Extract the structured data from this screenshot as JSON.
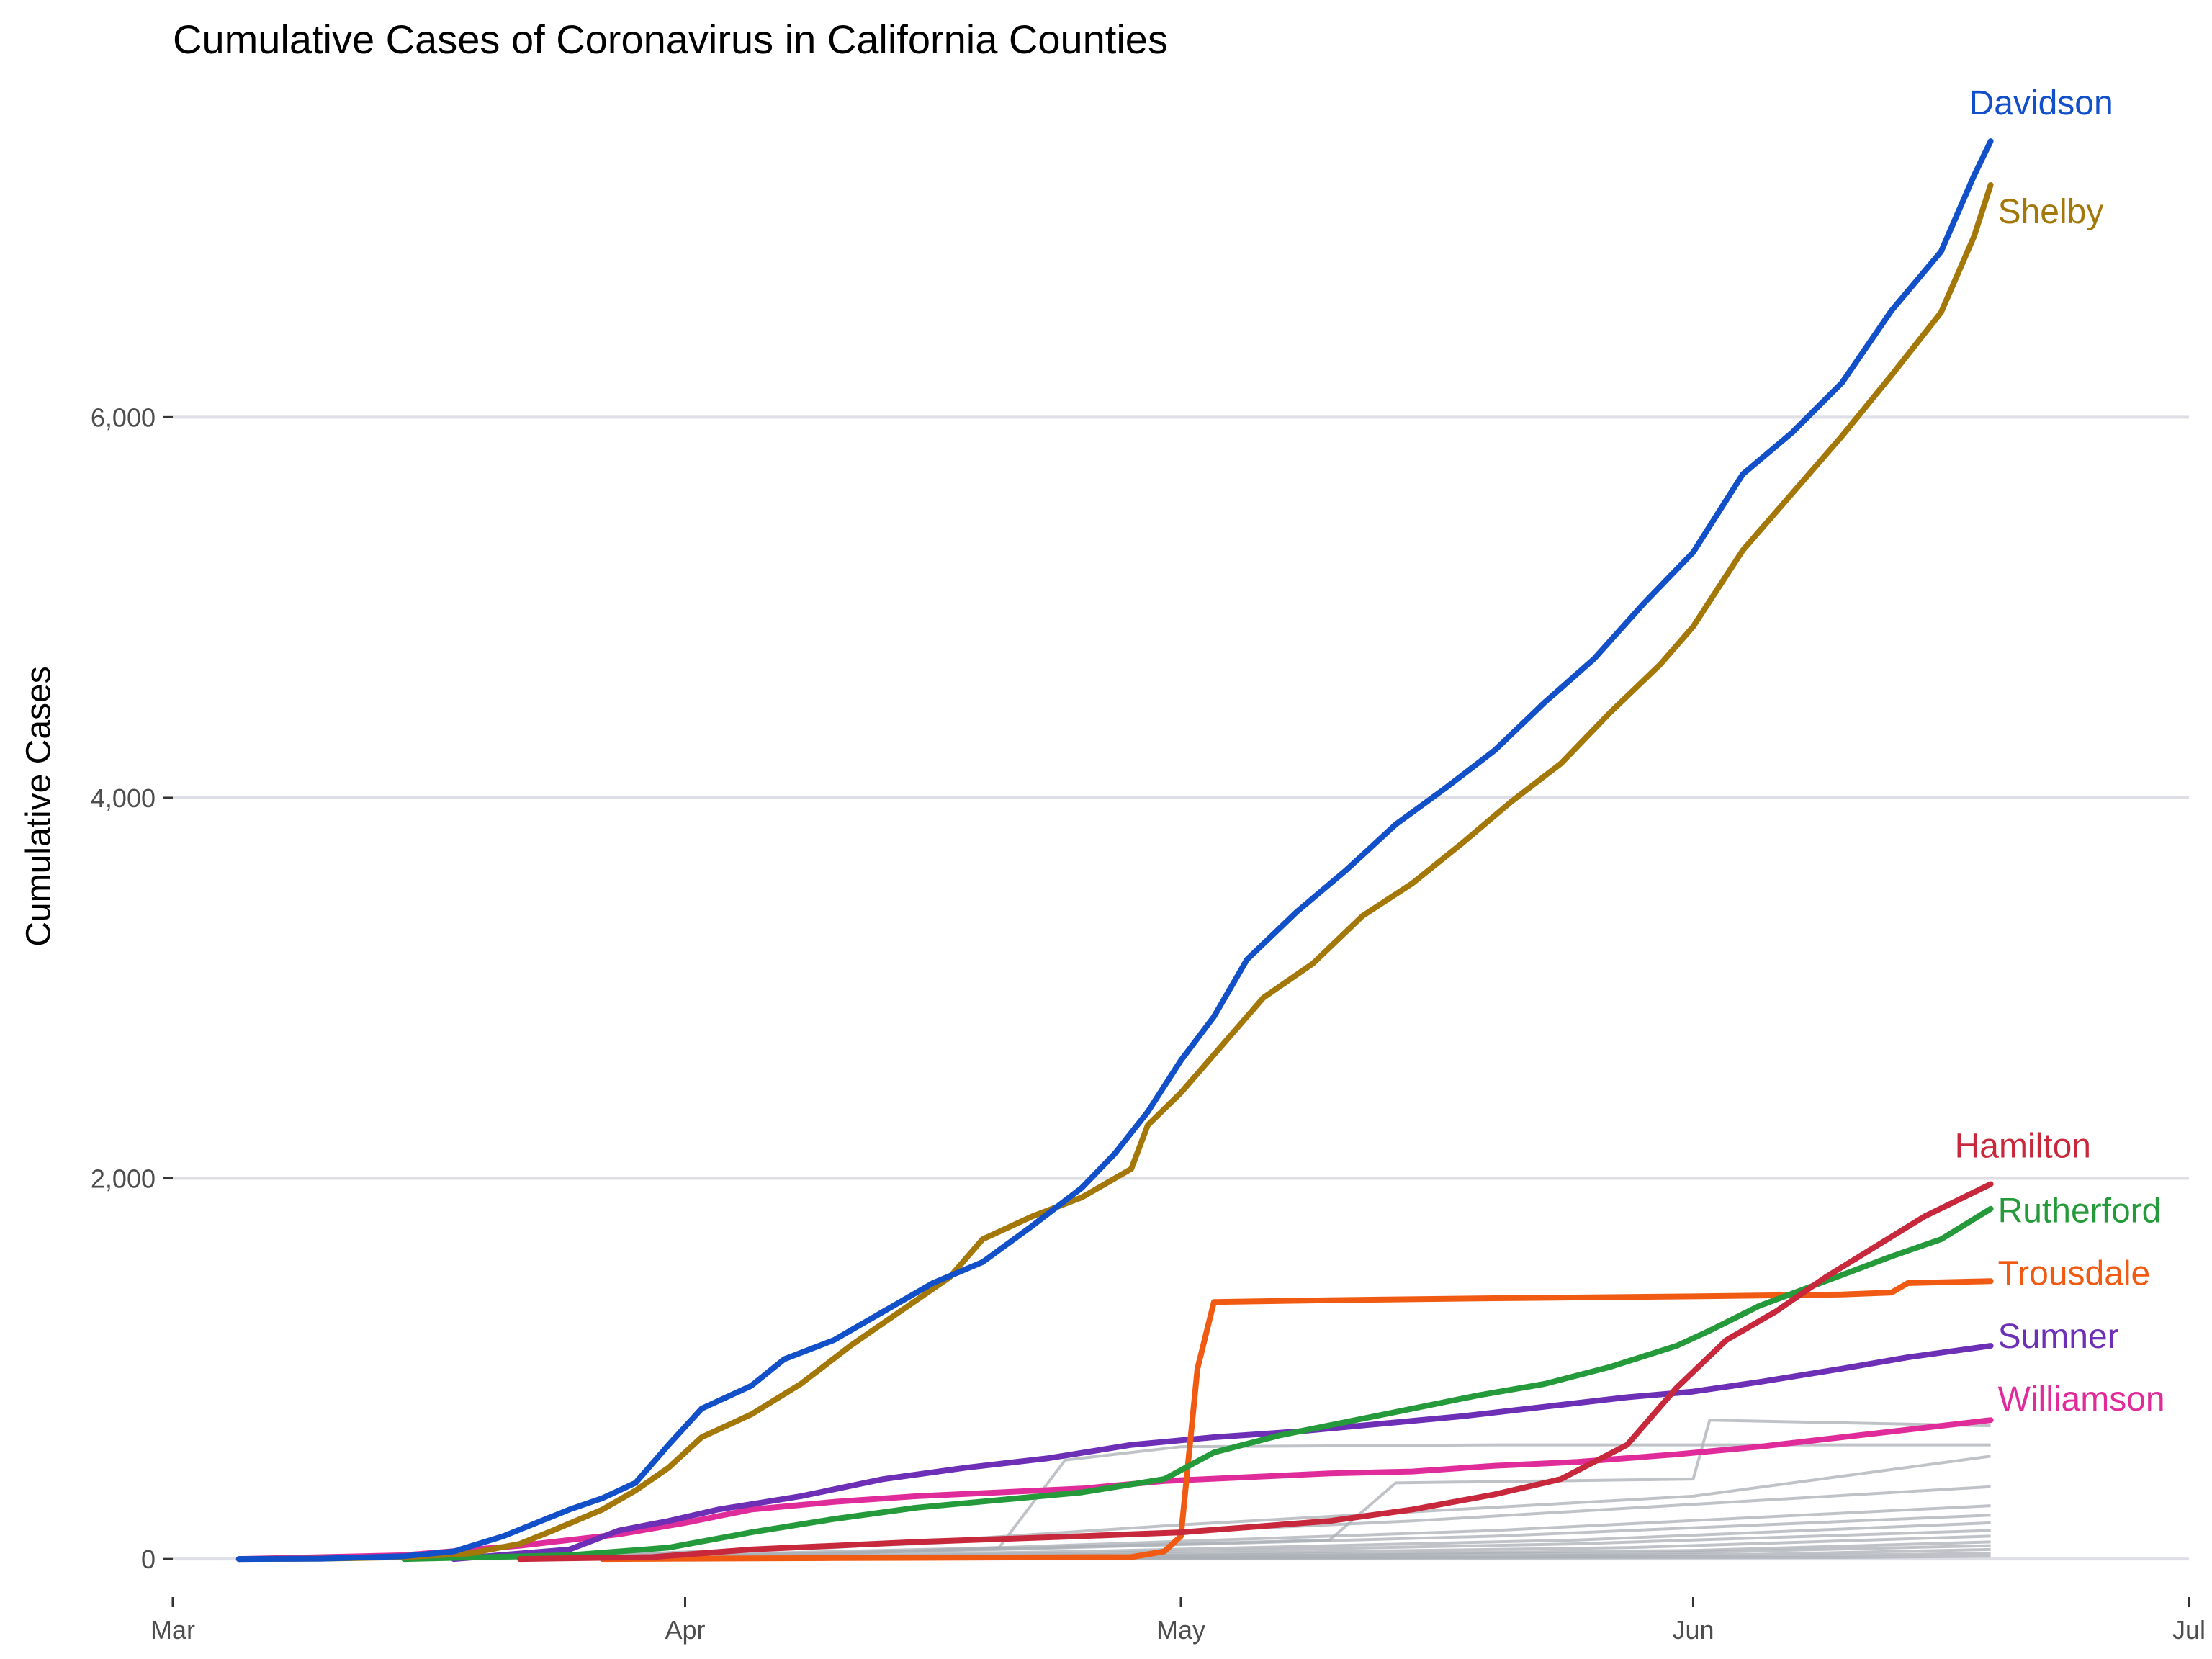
{
  "chart_data": {
    "type": "line",
    "title": "Cumulative Cases of Coronavirus in California Counties",
    "ylabel": "Cumulative Cases",
    "xlabel": "",
    "x_ticks": [
      "Mar",
      "Apr",
      "May",
      "Jun",
      "Jul"
    ],
    "x_tick_values": [
      "2020-03-01",
      "2020-04-01",
      "2020-05-01",
      "2020-06-01",
      "2020-07-01"
    ],
    "xlim": [
      "2020-03-01",
      "2020-07-01"
    ],
    "y_ticks": [
      0,
      2000,
      4000,
      6000
    ],
    "y_tick_labels": [
      "0",
      "2,000",
      "4,000",
      "6,000"
    ],
    "ylim": [
      -200,
      7700
    ],
    "grid": "horizontal",
    "legend": "direct labels at line ends",
    "highlighted_series": [
      {
        "name": "Davidson",
        "color": "#1150C8",
        "points": [
          [
            "2020-03-05",
            0
          ],
          [
            "2020-03-10",
            2
          ],
          [
            "2020-03-15",
            15
          ],
          [
            "2020-03-18",
            40
          ],
          [
            "2020-03-21",
            120
          ],
          [
            "2020-03-23",
            190
          ],
          [
            "2020-03-25",
            260
          ],
          [
            "2020-03-27",
            320
          ],
          [
            "2020-03-29",
            400
          ],
          [
            "2020-03-31",
            600
          ],
          [
            "2020-04-02",
            790
          ],
          [
            "2020-04-05",
            910
          ],
          [
            "2020-04-07",
            1050
          ],
          [
            "2020-04-10",
            1150
          ],
          [
            "2020-04-13",
            1300
          ],
          [
            "2020-04-16",
            1450
          ],
          [
            "2020-04-19",
            1560
          ],
          [
            "2020-04-22",
            1750
          ],
          [
            "2020-04-25",
            1950
          ],
          [
            "2020-04-27",
            2130
          ],
          [
            "2020-04-29",
            2350
          ],
          [
            "2020-05-01",
            2620
          ],
          [
            "2020-05-03",
            2850
          ],
          [
            "2020-05-05",
            3150
          ],
          [
            "2020-05-08",
            3400
          ],
          [
            "2020-05-11",
            3620
          ],
          [
            "2020-05-14",
            3860
          ],
          [
            "2020-05-17",
            4050
          ],
          [
            "2020-05-20",
            4250
          ],
          [
            "2020-05-23",
            4500
          ],
          [
            "2020-05-26",
            4730
          ],
          [
            "2020-05-29",
            5020
          ],
          [
            "2020-06-01",
            5290
          ],
          [
            "2020-06-04",
            5700
          ],
          [
            "2020-06-07",
            5920
          ],
          [
            "2020-06-10",
            6180
          ],
          [
            "2020-06-13",
            6560
          ],
          [
            "2020-06-16",
            6870
          ],
          [
            "2020-06-18",
            7270
          ],
          [
            "2020-06-19",
            7450
          ]
        ]
      },
      {
        "name": "Shelby",
        "color": "#A47808",
        "points": [
          [
            "2020-03-05",
            0
          ],
          [
            "2020-03-10",
            2
          ],
          [
            "2020-03-15",
            10
          ],
          [
            "2020-03-19",
            30
          ],
          [
            "2020-03-22",
            80
          ],
          [
            "2020-03-24",
            150
          ],
          [
            "2020-03-27",
            260
          ],
          [
            "2020-03-29",
            360
          ],
          [
            "2020-03-31",
            480
          ],
          [
            "2020-04-02",
            640
          ],
          [
            "2020-04-05",
            760
          ],
          [
            "2020-04-08",
            920
          ],
          [
            "2020-04-11",
            1120
          ],
          [
            "2020-04-14",
            1300
          ],
          [
            "2020-04-17",
            1480
          ],
          [
            "2020-04-19",
            1680
          ],
          [
            "2020-04-22",
            1800
          ],
          [
            "2020-04-25",
            1900
          ],
          [
            "2020-04-28",
            2050
          ],
          [
            "2020-04-29",
            2280
          ],
          [
            "2020-05-01",
            2450
          ],
          [
            "2020-05-03",
            2650
          ],
          [
            "2020-05-06",
            2950
          ],
          [
            "2020-05-09",
            3130
          ],
          [
            "2020-05-12",
            3380
          ],
          [
            "2020-05-15",
            3550
          ],
          [
            "2020-05-18",
            3760
          ],
          [
            "2020-05-21",
            3980
          ],
          [
            "2020-05-24",
            4180
          ],
          [
            "2020-05-27",
            4450
          ],
          [
            "2020-05-30",
            4700
          ],
          [
            "2020-06-01",
            4900
          ],
          [
            "2020-06-04",
            5300
          ],
          [
            "2020-06-07",
            5600
          ],
          [
            "2020-06-10",
            5900
          ],
          [
            "2020-06-13",
            6220
          ],
          [
            "2020-06-16",
            6550
          ],
          [
            "2020-06-18",
            6950
          ],
          [
            "2020-06-19",
            7220
          ]
        ]
      },
      {
        "name": "Hamilton",
        "color": "#C8283C",
        "points": [
          [
            "2020-03-22",
            0
          ],
          [
            "2020-03-30",
            10
          ],
          [
            "2020-04-05",
            50
          ],
          [
            "2020-04-15",
            90
          ],
          [
            "2020-04-25",
            120
          ],
          [
            "2020-05-01",
            140
          ],
          [
            "2020-05-10",
            200
          ],
          [
            "2020-05-15",
            260
          ],
          [
            "2020-05-20",
            340
          ],
          [
            "2020-05-24",
            420
          ],
          [
            "2020-05-28",
            600
          ],
          [
            "2020-05-31",
            900
          ],
          [
            "2020-06-03",
            1150
          ],
          [
            "2020-06-06",
            1300
          ],
          [
            "2020-06-09",
            1480
          ],
          [
            "2020-06-12",
            1640
          ],
          [
            "2020-06-15",
            1800
          ],
          [
            "2020-06-19",
            1970
          ]
        ]
      },
      {
        "name": "Rutherford",
        "color": "#249A3A",
        "points": [
          [
            "2020-03-15",
            0
          ],
          [
            "2020-03-25",
            20
          ],
          [
            "2020-03-31",
            60
          ],
          [
            "2020-04-05",
            140
          ],
          [
            "2020-04-10",
            210
          ],
          [
            "2020-04-15",
            270
          ],
          [
            "2020-04-20",
            310
          ],
          [
            "2020-04-25",
            350
          ],
          [
            "2020-04-30",
            420
          ],
          [
            "2020-05-03",
            560
          ],
          [
            "2020-05-07",
            650
          ],
          [
            "2020-05-11",
            720
          ],
          [
            "2020-05-15",
            790
          ],
          [
            "2020-05-19",
            860
          ],
          [
            "2020-05-23",
            920
          ],
          [
            "2020-05-27",
            1010
          ],
          [
            "2020-05-31",
            1120
          ],
          [
            "2020-06-02",
            1200
          ],
          [
            "2020-06-05",
            1330
          ],
          [
            "2020-06-09",
            1460
          ],
          [
            "2020-06-13",
            1590
          ],
          [
            "2020-06-16",
            1680
          ],
          [
            "2020-06-19",
            1840
          ]
        ]
      },
      {
        "name": "Trousdale",
        "color": "#F05A12",
        "points": [
          [
            "2020-03-27",
            0
          ],
          [
            "2020-04-10",
            5
          ],
          [
            "2020-04-28",
            10
          ],
          [
            "2020-04-30",
            40
          ],
          [
            "2020-05-01",
            120
          ],
          [
            "2020-05-02",
            1000
          ],
          [
            "2020-05-03",
            1350
          ],
          [
            "2020-05-10",
            1360
          ],
          [
            "2020-05-20",
            1370
          ],
          [
            "2020-06-01",
            1380
          ],
          [
            "2020-06-10",
            1390
          ],
          [
            "2020-06-13",
            1400
          ],
          [
            "2020-06-14",
            1450
          ],
          [
            "2020-06-19",
            1460
          ]
        ]
      },
      {
        "name": "Sumner",
        "color": "#6C2FB5",
        "points": [
          [
            "2020-03-18",
            0
          ],
          [
            "2020-03-25",
            50
          ],
          [
            "2020-03-28",
            150
          ],
          [
            "2020-03-31",
            200
          ],
          [
            "2020-04-03",
            260
          ],
          [
            "2020-04-08",
            330
          ],
          [
            "2020-04-13",
            420
          ],
          [
            "2020-04-18",
            480
          ],
          [
            "2020-04-23",
            530
          ],
          [
            "2020-04-28",
            600
          ],
          [
            "2020-05-03",
            640
          ],
          [
            "2020-05-08",
            670
          ],
          [
            "2020-05-13",
            710
          ],
          [
            "2020-05-18",
            750
          ],
          [
            "2020-05-23",
            800
          ],
          [
            "2020-05-28",
            850
          ],
          [
            "2020-06-01",
            880
          ],
          [
            "2020-06-05",
            930
          ],
          [
            "2020-06-10",
            1000
          ],
          [
            "2020-06-14",
            1060
          ],
          [
            "2020-06-19",
            1120
          ]
        ]
      },
      {
        "name": "Williamson",
        "color": "#E02C9A",
        "points": [
          [
            "2020-03-05",
            0
          ],
          [
            "2020-03-15",
            20
          ],
          [
            "2020-03-22",
            70
          ],
          [
            "2020-03-28",
            130
          ],
          [
            "2020-04-01",
            190
          ],
          [
            "2020-04-05",
            260
          ],
          [
            "2020-04-10",
            300
          ],
          [
            "2020-04-15",
            330
          ],
          [
            "2020-04-20",
            350
          ],
          [
            "2020-04-25",
            370
          ],
          [
            "2020-04-30",
            410
          ],
          [
            "2020-05-05",
            430
          ],
          [
            "2020-05-10",
            450
          ],
          [
            "2020-05-15",
            460
          ],
          [
            "2020-05-20",
            490
          ],
          [
            "2020-05-25",
            510
          ],
          [
            "2020-05-31",
            550
          ],
          [
            "2020-06-05",
            590
          ],
          [
            "2020-06-10",
            640
          ],
          [
            "2020-06-15",
            690
          ],
          [
            "2020-06-19",
            730
          ]
        ]
      }
    ],
    "background_series_color": "#A9AFB5",
    "background_series": [
      [
        [
          "2020-03-27",
          0
        ],
        [
          "2020-04-05",
          10
        ],
        [
          "2020-04-20",
          60
        ],
        [
          "2020-04-24",
          520
        ],
        [
          "2020-05-01",
          590
        ],
        [
          "2020-05-20",
          600
        ],
        [
          "2020-06-19",
          600
        ]
      ],
      [
        [
          "2020-03-25",
          0
        ],
        [
          "2020-04-10",
          30
        ],
        [
          "2020-05-10",
          100
        ],
        [
          "2020-05-14",
          400
        ],
        [
          "2020-06-01",
          420
        ],
        [
          "2020-06-02",
          730
        ],
        [
          "2020-06-19",
          700
        ]
      ],
      [
        [
          "2020-03-20",
          0
        ],
        [
          "2020-04-10",
          60
        ],
        [
          "2020-05-01",
          180
        ],
        [
          "2020-06-01",
          330
        ],
        [
          "2020-06-19",
          540
        ]
      ],
      [
        [
          "2020-03-20",
          0
        ],
        [
          "2020-04-15",
          80
        ],
        [
          "2020-05-15",
          200
        ],
        [
          "2020-06-19",
          380
        ]
      ],
      [
        [
          "2020-03-22",
          0
        ],
        [
          "2020-04-20",
          60
        ],
        [
          "2020-05-20",
          150
        ],
        [
          "2020-06-19",
          280
        ]
      ],
      [
        [
          "2020-03-22",
          0
        ],
        [
          "2020-04-20",
          50
        ],
        [
          "2020-05-20",
          120
        ],
        [
          "2020-06-19",
          230
        ]
      ],
      [
        [
          "2020-03-25",
          0
        ],
        [
          "2020-04-25",
          40
        ],
        [
          "2020-05-25",
          100
        ],
        [
          "2020-06-19",
          190
        ]
      ],
      [
        [
          "2020-03-25",
          0
        ],
        [
          "2020-04-25",
          30
        ],
        [
          "2020-05-25",
          80
        ],
        [
          "2020-06-19",
          150
        ]
      ],
      [
        [
          "2020-03-27",
          0
        ],
        [
          "2020-04-28",
          25
        ],
        [
          "2020-05-28",
          60
        ],
        [
          "2020-06-19",
          120
        ]
      ],
      [
        [
          "2020-03-27",
          0
        ],
        [
          "2020-05-01",
          20
        ],
        [
          "2020-06-01",
          45
        ],
        [
          "2020-06-19",
          90
        ]
      ],
      [
        [
          "2020-03-28",
          0
        ],
        [
          "2020-05-01",
          15
        ],
        [
          "2020-06-01",
          35
        ],
        [
          "2020-06-19",
          70
        ]
      ],
      [
        [
          "2020-03-28",
          0
        ],
        [
          "2020-05-05",
          10
        ],
        [
          "2020-06-05",
          25
        ],
        [
          "2020-06-19",
          50
        ]
      ],
      [
        [
          "2020-03-30",
          0
        ],
        [
          "2020-05-05",
          6
        ],
        [
          "2020-06-05",
          15
        ],
        [
          "2020-06-19",
          30
        ]
      ],
      [
        [
          "2020-04-01",
          0
        ],
        [
          "2020-05-10",
          4
        ],
        [
          "2020-06-10",
          8
        ],
        [
          "2020-06-19",
          15
        ]
      ]
    ],
    "series_labels": {
      "Davidson": 7650,
      "Shelby": 7080,
      "Hamilton": 2170,
      "Rutherford": 1830,
      "Trousdale": 1500,
      "Sumner": 1170,
      "Williamson": 840
    }
  }
}
